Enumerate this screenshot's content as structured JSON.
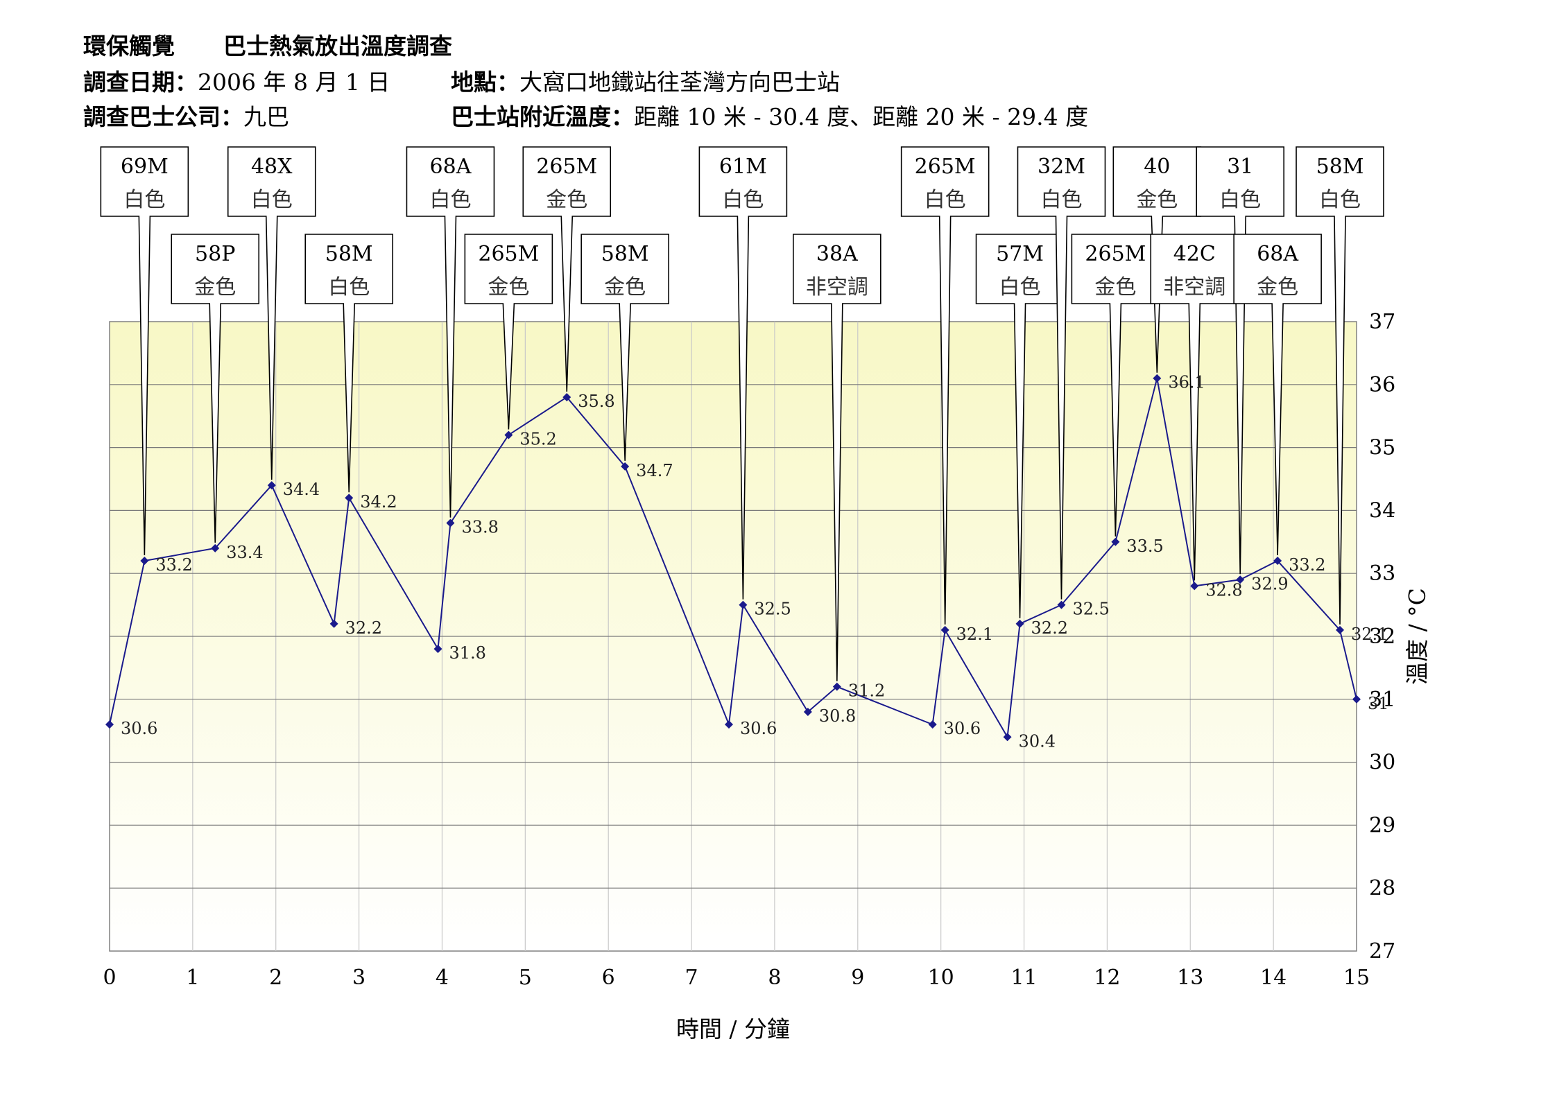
{
  "header": {
    "org": "環保觸覺",
    "title": "巴士熱氣放出溫度調查",
    "date_label": "調查日期：",
    "date_value": "2006 年 8 月 1 日",
    "location_label": "地點：",
    "location_value": "大窩口地鐵站往荃灣方向巴士站",
    "company_label": "調查巴士公司：",
    "company_value": "九巴",
    "ambient_label": "巴士站附近溫度：",
    "ambient_value": "距離 10 米 - 30.4 度、距離 20 米 - 29.4 度"
  },
  "chart_data": {
    "type": "line",
    "xlabel": "時間 / 分鐘",
    "ylabel": "溫度 / °C",
    "xlim": [
      0,
      15
    ],
    "ylim": [
      27,
      37
    ],
    "x_ticks": [
      "0",
      "1",
      "2",
      "3",
      "4",
      "5",
      "6",
      "7",
      "8",
      "9",
      "10",
      "11",
      "12",
      "13",
      "14",
      "15"
    ],
    "y_ticks": [
      "27",
      "28",
      "29",
      "30",
      "31",
      "32",
      "33",
      "34",
      "35",
      "36",
      "37"
    ],
    "grid": true,
    "line_color": "#1a1a8c",
    "plot_bg_top": "#f8f8c6",
    "plot_bg_bottom": "#ffffff",
    "points": [
      {
        "x": 0.0,
        "y": 30.6,
        "label": "30.6"
      },
      {
        "x": 0.42,
        "y": 33.2,
        "label": "33.2",
        "route": "69M",
        "color": "白色",
        "row": 1
      },
      {
        "x": 1.27,
        "y": 33.4,
        "label": "33.4",
        "route": "58P",
        "color": "金色",
        "row": 2
      },
      {
        "x": 1.95,
        "y": 34.4,
        "label": "34.4",
        "route": "48X",
        "color": "白色",
        "row": 1
      },
      {
        "x": 2.7,
        "y": 32.2,
        "label": "32.2"
      },
      {
        "x": 2.88,
        "y": 34.2,
        "label": "34.2",
        "route": "58M",
        "color": "白色",
        "row": 2
      },
      {
        "x": 3.95,
        "y": 31.8,
        "label": "31.8"
      },
      {
        "x": 4.1,
        "y": 33.8,
        "label": "33.8",
        "route": "68A",
        "color": "白色",
        "row": 1
      },
      {
        "x": 4.8,
        "y": 35.2,
        "label": "35.2",
        "route": "265M",
        "color": "金色",
        "row": 2
      },
      {
        "x": 5.5,
        "y": 35.8,
        "label": "35.8",
        "route": "265M",
        "color": "金色",
        "row": 1
      },
      {
        "x": 6.2,
        "y": 34.7,
        "label": "34.7",
        "route": "58M",
        "color": "金色",
        "row": 2
      },
      {
        "x": 7.45,
        "y": 30.6,
        "label": "30.6"
      },
      {
        "x": 7.62,
        "y": 32.5,
        "label": "32.5",
        "route": "61M",
        "color": "白色",
        "row": 1
      },
      {
        "x": 8.4,
        "y": 30.8,
        "label": "30.8"
      },
      {
        "x": 8.75,
        "y": 31.2,
        "label": "31.2",
        "route": "38A",
        "color": "非空調",
        "row": 2
      },
      {
        "x": 9.9,
        "y": 30.6,
        "label": "30.6"
      },
      {
        "x": 10.05,
        "y": 32.1,
        "label": "32.1",
        "route": "265M",
        "color": "白色",
        "row": 1
      },
      {
        "x": 10.8,
        "y": 30.4,
        "label": "30.4"
      },
      {
        "x": 10.95,
        "y": 32.2,
        "label": "32.2",
        "route": "57M",
        "color": "白色",
        "row": 2
      },
      {
        "x": 11.45,
        "y": 32.5,
        "label": "32.5",
        "route": "32M",
        "color": "白色",
        "row": 1
      },
      {
        "x": 12.1,
        "y": 33.5,
        "label": "33.5",
        "route": "265M",
        "color": "金色",
        "row": 2
      },
      {
        "x": 12.6,
        "y": 36.1,
        "label": "36.1",
        "route": "40",
        "color": "金色",
        "row": 1
      },
      {
        "x": 13.05,
        "y": 32.8,
        "label": "32.8",
        "route": "42C",
        "color": "非空調",
        "row": 2
      },
      {
        "x": 13.6,
        "y": 32.9,
        "label": "32.9",
        "route": "31",
        "color": "白色",
        "row": 1
      },
      {
        "x": 14.05,
        "y": 33.2,
        "label": "33.2",
        "route": "68A",
        "color": "金色",
        "row": 2
      },
      {
        "x": 14.8,
        "y": 32.1,
        "label": "32.1",
        "route": "58M",
        "color": "白色",
        "row": 1
      },
      {
        "x": 15.0,
        "y": 31.0,
        "label": "31"
      }
    ]
  }
}
